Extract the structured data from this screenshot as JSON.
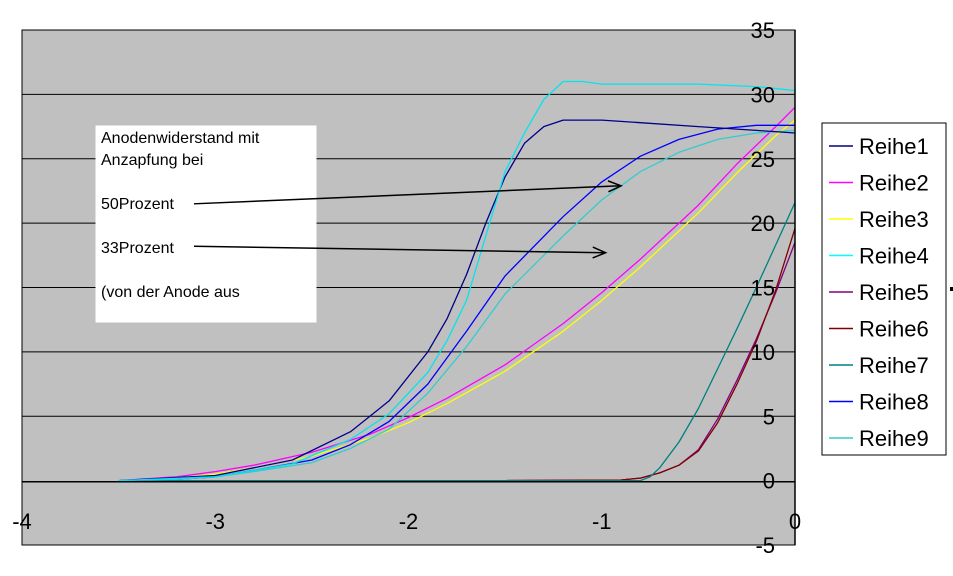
{
  "chart_data": {
    "type": "line",
    "title": "",
    "xlabel": "",
    "ylabel": "",
    "xlim": [
      -4,
      0
    ],
    "ylim": [
      -5,
      35
    ],
    "x_ticks": [
      -4,
      -3,
      -2,
      -1,
      0
    ],
    "y_ticks": [
      -5,
      0,
      5,
      10,
      15,
      20,
      25,
      30,
      35
    ],
    "grid": "horizontal",
    "plot_background": "#C0C0C0",
    "legend_position": "right",
    "annotation": {
      "lines": [
        "Anodenwiderstand mit",
        "Anzapfung bei",
        "",
        "50Prozent",
        "",
        "33Prozent",
        "",
        "(von der Anode aus"
      ],
      "arrows": [
        {
          "label": "50Prozent",
          "from": [
            -2.9,
            21.5
          ],
          "to": [
            -0.9,
            22.9
          ]
        },
        {
          "label": "33Prozent",
          "from": [
            -2.9,
            18.2
          ],
          "to": [
            -0.98,
            17.7
          ]
        }
      ]
    },
    "series": [
      {
        "name": "Reihe1",
        "color": "#000080",
        "points": []
      },
      {
        "name": "Reihe2",
        "color": "#FF00FF",
        "points": [
          [
            -3.5,
            0
          ],
          [
            -3.2,
            0.3
          ],
          [
            -3.0,
            0.7
          ],
          [
            -2.8,
            1.2
          ],
          [
            -2.5,
            2.2
          ],
          [
            -2.2,
            3.6
          ],
          [
            -2.0,
            4.9
          ],
          [
            -1.8,
            6.4
          ],
          [
            -1.5,
            9.0
          ],
          [
            -1.2,
            12.2
          ],
          [
            -1.0,
            14.6
          ],
          [
            -0.8,
            17.2
          ],
          [
            -0.5,
            21.4
          ],
          [
            -0.3,
            24.6
          ],
          [
            -0.1,
            27.5
          ],
          [
            0,
            29
          ]
        ]
      },
      {
        "name": "Reihe3",
        "color": "#FFFF00",
        "points": [
          [
            -3.5,
            0
          ],
          [
            -3.2,
            0.2
          ],
          [
            -3.0,
            0.5
          ],
          [
            -2.8,
            1.0
          ],
          [
            -2.5,
            1.9
          ],
          [
            -2.2,
            3.3
          ],
          [
            -2.0,
            4.5
          ],
          [
            -1.8,
            6.0
          ],
          [
            -1.5,
            8.5
          ],
          [
            -1.2,
            11.6
          ],
          [
            -1.0,
            14.0
          ],
          [
            -0.8,
            16.6
          ],
          [
            -0.5,
            20.8
          ],
          [
            -0.3,
            23.9
          ],
          [
            -0.1,
            26.8
          ],
          [
            0,
            28
          ]
        ]
      },
      {
        "name": "Reihe4",
        "color": "#00FFFF",
        "points": []
      },
      {
        "name": "Reihe5",
        "color": "#800080",
        "points": [
          [
            -3.5,
            0
          ],
          [
            -1.5,
            0
          ],
          [
            -0.9,
            0.05
          ],
          [
            -0.8,
            0.2
          ],
          [
            -0.7,
            0.6
          ],
          [
            -0.6,
            1.2
          ],
          [
            -0.5,
            2.4
          ],
          [
            -0.4,
            4.8
          ],
          [
            -0.3,
            7.8
          ],
          [
            -0.2,
            11.0
          ],
          [
            -0.1,
            14.6
          ],
          [
            0,
            18.5
          ]
        ]
      },
      {
        "name": "Reihe6",
        "color": "#800000",
        "points": [
          [
            -3.5,
            0
          ],
          [
            -1.5,
            0
          ],
          [
            -0.9,
            0.05
          ],
          [
            -0.8,
            0.2
          ],
          [
            -0.7,
            0.6
          ],
          [
            -0.6,
            1.2
          ],
          [
            -0.5,
            2.3
          ],
          [
            -0.4,
            4.5
          ],
          [
            -0.3,
            7.5
          ],
          [
            -0.2,
            10.8
          ],
          [
            -0.1,
            14.8
          ],
          [
            0,
            19.6
          ]
        ]
      },
      {
        "name": "Reihe7",
        "color": "#008080",
        "points": [
          [
            -3.5,
            0
          ],
          [
            -0.8,
            0
          ],
          [
            -0.75,
            0.3
          ],
          [
            -0.7,
            1.0
          ],
          [
            -0.6,
            3.0
          ],
          [
            -0.5,
            5.6
          ],
          [
            -0.4,
            8.7
          ],
          [
            -0.3,
            11.8
          ],
          [
            -0.2,
            15.0
          ],
          [
            -0.1,
            18.3
          ],
          [
            0,
            21.6
          ]
        ]
      },
      {
        "name": "Reihe8",
        "color": "#0000FF",
        "points": [
          [
            -3.5,
            0
          ],
          [
            -3.2,
            0.1
          ],
          [
            -3.0,
            0.3
          ],
          [
            -2.8,
            0.8
          ],
          [
            -2.5,
            1.6
          ],
          [
            -2.3,
            2.8
          ],
          [
            -2.1,
            4.6
          ],
          [
            -1.9,
            7.5
          ],
          [
            -1.7,
            11.6
          ],
          [
            -1.5,
            15.9
          ],
          [
            -1.2,
            20.5
          ],
          [
            -1.0,
            23.2
          ],
          [
            -0.8,
            25.2
          ],
          [
            -0.6,
            26.5
          ],
          [
            -0.4,
            27.3
          ],
          [
            -0.2,
            27.6
          ],
          [
            0,
            27.6
          ]
        ]
      },
      {
        "name": "Reihe9",
        "color": "#33CCCC",
        "points": [
          [
            -3.5,
            0
          ],
          [
            -3.2,
            0.1
          ],
          [
            -3.0,
            0.3
          ],
          [
            -2.8,
            0.7
          ],
          [
            -2.5,
            1.4
          ],
          [
            -2.3,
            2.5
          ],
          [
            -2.1,
            4.0
          ],
          [
            -1.9,
            6.8
          ],
          [
            -1.7,
            10.4
          ],
          [
            -1.5,
            14.5
          ],
          [
            -1.2,
            19.0
          ],
          [
            -1.0,
            21.8
          ],
          [
            -0.8,
            24.0
          ],
          [
            -0.6,
            25.5
          ],
          [
            -0.4,
            26.5
          ],
          [
            -0.2,
            27.0
          ],
          [
            0,
            27.2
          ]
        ]
      },
      {
        "name": "",
        "color": "#00008B",
        "points": [
          [
            -3.5,
            0
          ],
          [
            -3.0,
            0.4
          ],
          [
            -2.6,
            1.6
          ],
          [
            -2.3,
            3.8
          ],
          [
            -2.1,
            6.2
          ],
          [
            -1.9,
            10.0
          ],
          [
            -1.8,
            12.6
          ],
          [
            -1.7,
            16.0
          ],
          [
            -1.6,
            20.0
          ],
          [
            -1.5,
            23.6
          ],
          [
            -1.4,
            26.2
          ],
          [
            -1.3,
            27.5
          ],
          [
            -1.2,
            28.0
          ],
          [
            -1.0,
            28.0
          ],
          [
            -0.8,
            27.8
          ],
          [
            -0.5,
            27.5
          ],
          [
            -0.2,
            27.2
          ],
          [
            0,
            27.0
          ]
        ]
      },
      {
        "name": "",
        "color": "#00E5EE",
        "points": [
          [
            -3.5,
            0
          ],
          [
            -3.0,
            0.3
          ],
          [
            -2.6,
            1.3
          ],
          [
            -2.3,
            3.2
          ],
          [
            -2.1,
            5.2
          ],
          [
            -1.9,
            8.4
          ],
          [
            -1.8,
            10.9
          ],
          [
            -1.7,
            14.0
          ],
          [
            -1.6,
            19.0
          ],
          [
            -1.5,
            24.0
          ],
          [
            -1.4,
            27.0
          ],
          [
            -1.3,
            29.6
          ],
          [
            -1.2,
            31.0
          ],
          [
            -1.1,
            31.0
          ],
          [
            -1.0,
            30.8
          ],
          [
            -0.5,
            30.8
          ],
          [
            -0.2,
            30.6
          ],
          [
            0,
            30.3
          ]
        ]
      }
    ]
  }
}
